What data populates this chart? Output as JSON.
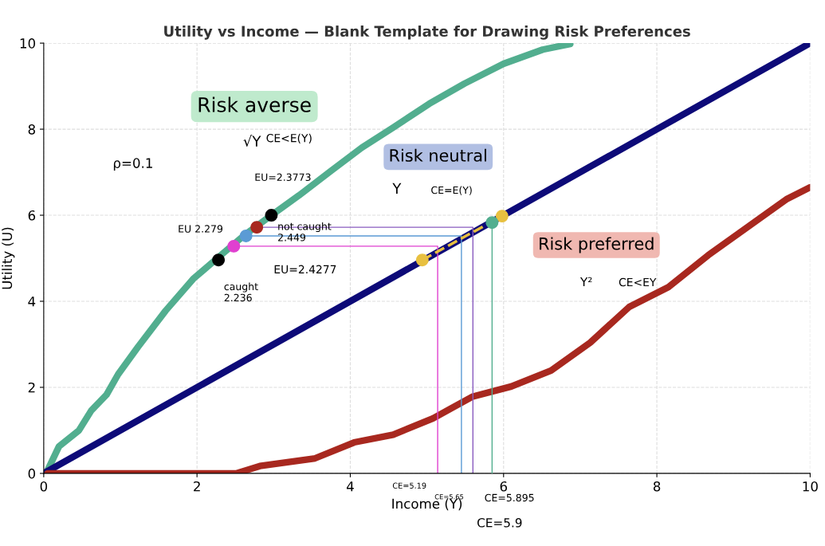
{
  "chart_data": {
    "type": "line",
    "title": "Utility vs Income — Blank Template for Drawing Risk Preferences",
    "xlabel": "Income (Y)",
    "ylabel": "Utility (U)",
    "xlim": [
      0,
      10
    ],
    "ylim": [
      0,
      10
    ],
    "xticks": [
      0,
      2,
      4,
      6,
      8,
      10
    ],
    "yticks": [
      0,
      2,
      4,
      6,
      8,
      10
    ],
    "grid": true,
    "legend": false,
    "marker": "none",
    "line_style": "solid",
    "series": [
      {
        "color": "#52ae8f",
        "x": [
          0.05,
          0.2,
          0.46,
          0.62,
          0.82,
          0.97,
          1.23,
          1.59,
          1.95,
          2.29,
          2.62,
          2.97,
          3.33,
          3.74,
          4.15,
          4.56,
          5.03,
          5.49,
          6.0,
          6.51,
          6.87
        ],
        "values": [
          0.07,
          0.63,
          1.0,
          1.46,
          1.83,
          2.3,
          2.94,
          3.78,
          4.52,
          5.04,
          5.54,
          6.0,
          6.46,
          7.02,
          7.57,
          8.04,
          8.59,
          9.06,
          9.52,
          9.85,
          9.98
        ]
      },
      {
        "color": "#0d0a78",
        "x": [
          0,
          10
        ],
        "values": [
          0,
          10
        ]
      },
      {
        "color": "#a8281f",
        "x": [
          0.05,
          1.49,
          2.51,
          2.82,
          3.54,
          4.05,
          4.56,
          5.08,
          5.59,
          6.1,
          6.62,
          7.13,
          7.64,
          8.15,
          8.67,
          9.18,
          9.69,
          10
        ],
        "values": [
          0,
          0,
          0,
          0.17,
          0.35,
          0.72,
          0.9,
          1.28,
          1.78,
          2.02,
          2.39,
          3.04,
          3.87,
          4.33,
          5.07,
          5.72,
          6.37,
          6.65
        ]
      },
      {
        "color": "#e040d0",
        "x": [
          2.48,
          5.14,
          5.14
        ],
        "values": [
          5.28,
          5.28,
          0
        ]
      },
      {
        "color": "#5b9bd5",
        "x": [
          2.64,
          5.45,
          5.45
        ],
        "values": [
          5.52,
          5.52,
          0
        ]
      },
      {
        "color": "#8a5cc0",
        "x": [
          2.78,
          5.6,
          5.6
        ],
        "values": [
          5.72,
          5.72,
          0
        ]
      },
      {
        "color": "#52ae8f",
        "x": [
          5.85,
          5.85
        ],
        "values": [
          5.83,
          0
        ]
      },
      {
        "color": "#e8c040",
        "x": [
          4.94,
          5.98
        ],
        "values": [
          4.96,
          5.98
        ],
        "line_style": "dashed"
      },
      {
        "type": "scatter",
        "color": "#000000",
        "x": [
          2.28,
          2.97
        ],
        "values": [
          4.96,
          6.0
        ],
        "marker": "circle"
      },
      {
        "type": "scatter",
        "color": "#e040d0",
        "x": [
          2.48
        ],
        "values": [
          5.28
        ],
        "marker": "circle"
      },
      {
        "type": "scatter",
        "color": "#5b9bd5",
        "x": [
          2.64
        ],
        "values": [
          5.52
        ],
        "marker": "circle"
      },
      {
        "type": "scatter",
        "color": "#a8281f",
        "x": [
          2.78
        ],
        "values": [
          5.72
        ],
        "marker": "circle"
      },
      {
        "type": "scatter",
        "color": "#e8c040",
        "x": [
          4.94,
          5.98
        ],
        "values": [
          4.96,
          5.98
        ],
        "marker": "circle"
      },
      {
        "type": "scatter",
        "color": "#52ae8f",
        "x": [
          5.85
        ],
        "values": [
          5.83
        ],
        "marker": "circle"
      }
    ],
    "annotations": [
      "Risk averse",
      "√Y",
      "CE<E(Y)",
      "ρ=0.1",
      "EU=2.3773",
      "EU 2.279",
      "not caught\n2.449",
      "EU=2.4277",
      "caught\n2.236",
      "Risk neutral",
      "Y",
      "CE=E(Y)",
      "Risk preferred",
      "Y²",
      "CE<EY",
      "CE=5.19",
      "CE=5.65",
      "CE=5.895",
      "CE=5.9"
    ]
  }
}
